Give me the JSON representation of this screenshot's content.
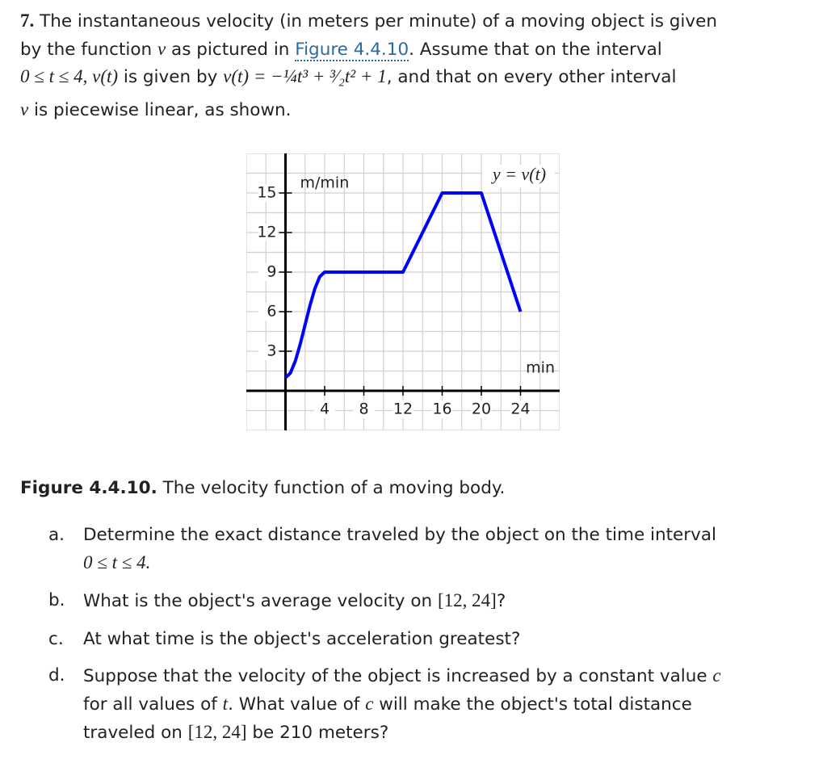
{
  "problem": {
    "number": "7.",
    "lines": [
      [
        " The instantaneous velocity (in meters per minute) of a moving object is given"
      ],
      [
        "by the function ",
        "v",
        " as pictured in ",
        "Figure 4.4.10",
        ". Assume that on the interval"
      ],
      [
        "0 ≤ t ≤ 4, v(t)",
        " is given by ",
        "v(t) = −¼t³ + ³⁄₂t² + 1",
        ", and that on every other interval"
      ],
      [
        "v",
        " is piecewise linear, as shown."
      ]
    ]
  },
  "chart_data": {
    "type": "line",
    "x": [
      0,
      0.5,
      1,
      1.5,
      2,
      2.5,
      3,
      3.5,
      4,
      12,
      16,
      20,
      24
    ],
    "series": [
      {
        "name": "y = v(t)",
        "color": "#0000ff",
        "values": [
          1,
          1.34375,
          2.25,
          3.53125,
          5,
          6.46875,
          7.75,
          8.65625,
          9,
          9,
          15,
          15,
          6
        ]
      }
    ],
    "x_label": "min",
    "y_label": "m/min",
    "xlim": [
      -4,
      28
    ],
    "ylim": [
      -3,
      18
    ],
    "xticks": [
      4,
      8,
      12,
      16,
      20,
      24
    ],
    "yticks": [
      3,
      6,
      9,
      12,
      15
    ],
    "xgrid": [
      -4,
      -2,
      0,
      2,
      4,
      6,
      8,
      10,
      12,
      14,
      16,
      18,
      20,
      22,
      24,
      26,
      28
    ],
    "ygrid": [
      -3,
      -1.5,
      0,
      1.5,
      3,
      4.5,
      6,
      7.5,
      9,
      10.5,
      12,
      13.5,
      15,
      16.5,
      18
    ],
    "grid": true
  },
  "caption": {
    "label": "Figure 4.4.10.",
    "text": " The velocity function of a moving body."
  },
  "parts": [
    {
      "label": "a.",
      "lines": [
        [
          "Determine the exact distance traveled by the object on the time interval"
        ],
        [
          "0 ≤ t ≤ 4."
        ]
      ]
    },
    {
      "label": "b.",
      "lines": [
        [
          "What is the object's average velocity on ",
          "[12, 24]",
          "?"
        ]
      ]
    },
    {
      "label": "c.",
      "lines": [
        [
          "At what time is the object's acceleration greatest?"
        ]
      ]
    },
    {
      "label": "d.",
      "lines": [
        [
          "Suppose that the velocity of the object is increased by a constant value ",
          "c"
        ],
        [
          "for all values of ",
          "t",
          ". What value of ",
          "c",
          " will make the object's total distance"
        ],
        [
          "traveled on ",
          "[12, 24]",
          " be 210 meters?"
        ]
      ]
    }
  ]
}
